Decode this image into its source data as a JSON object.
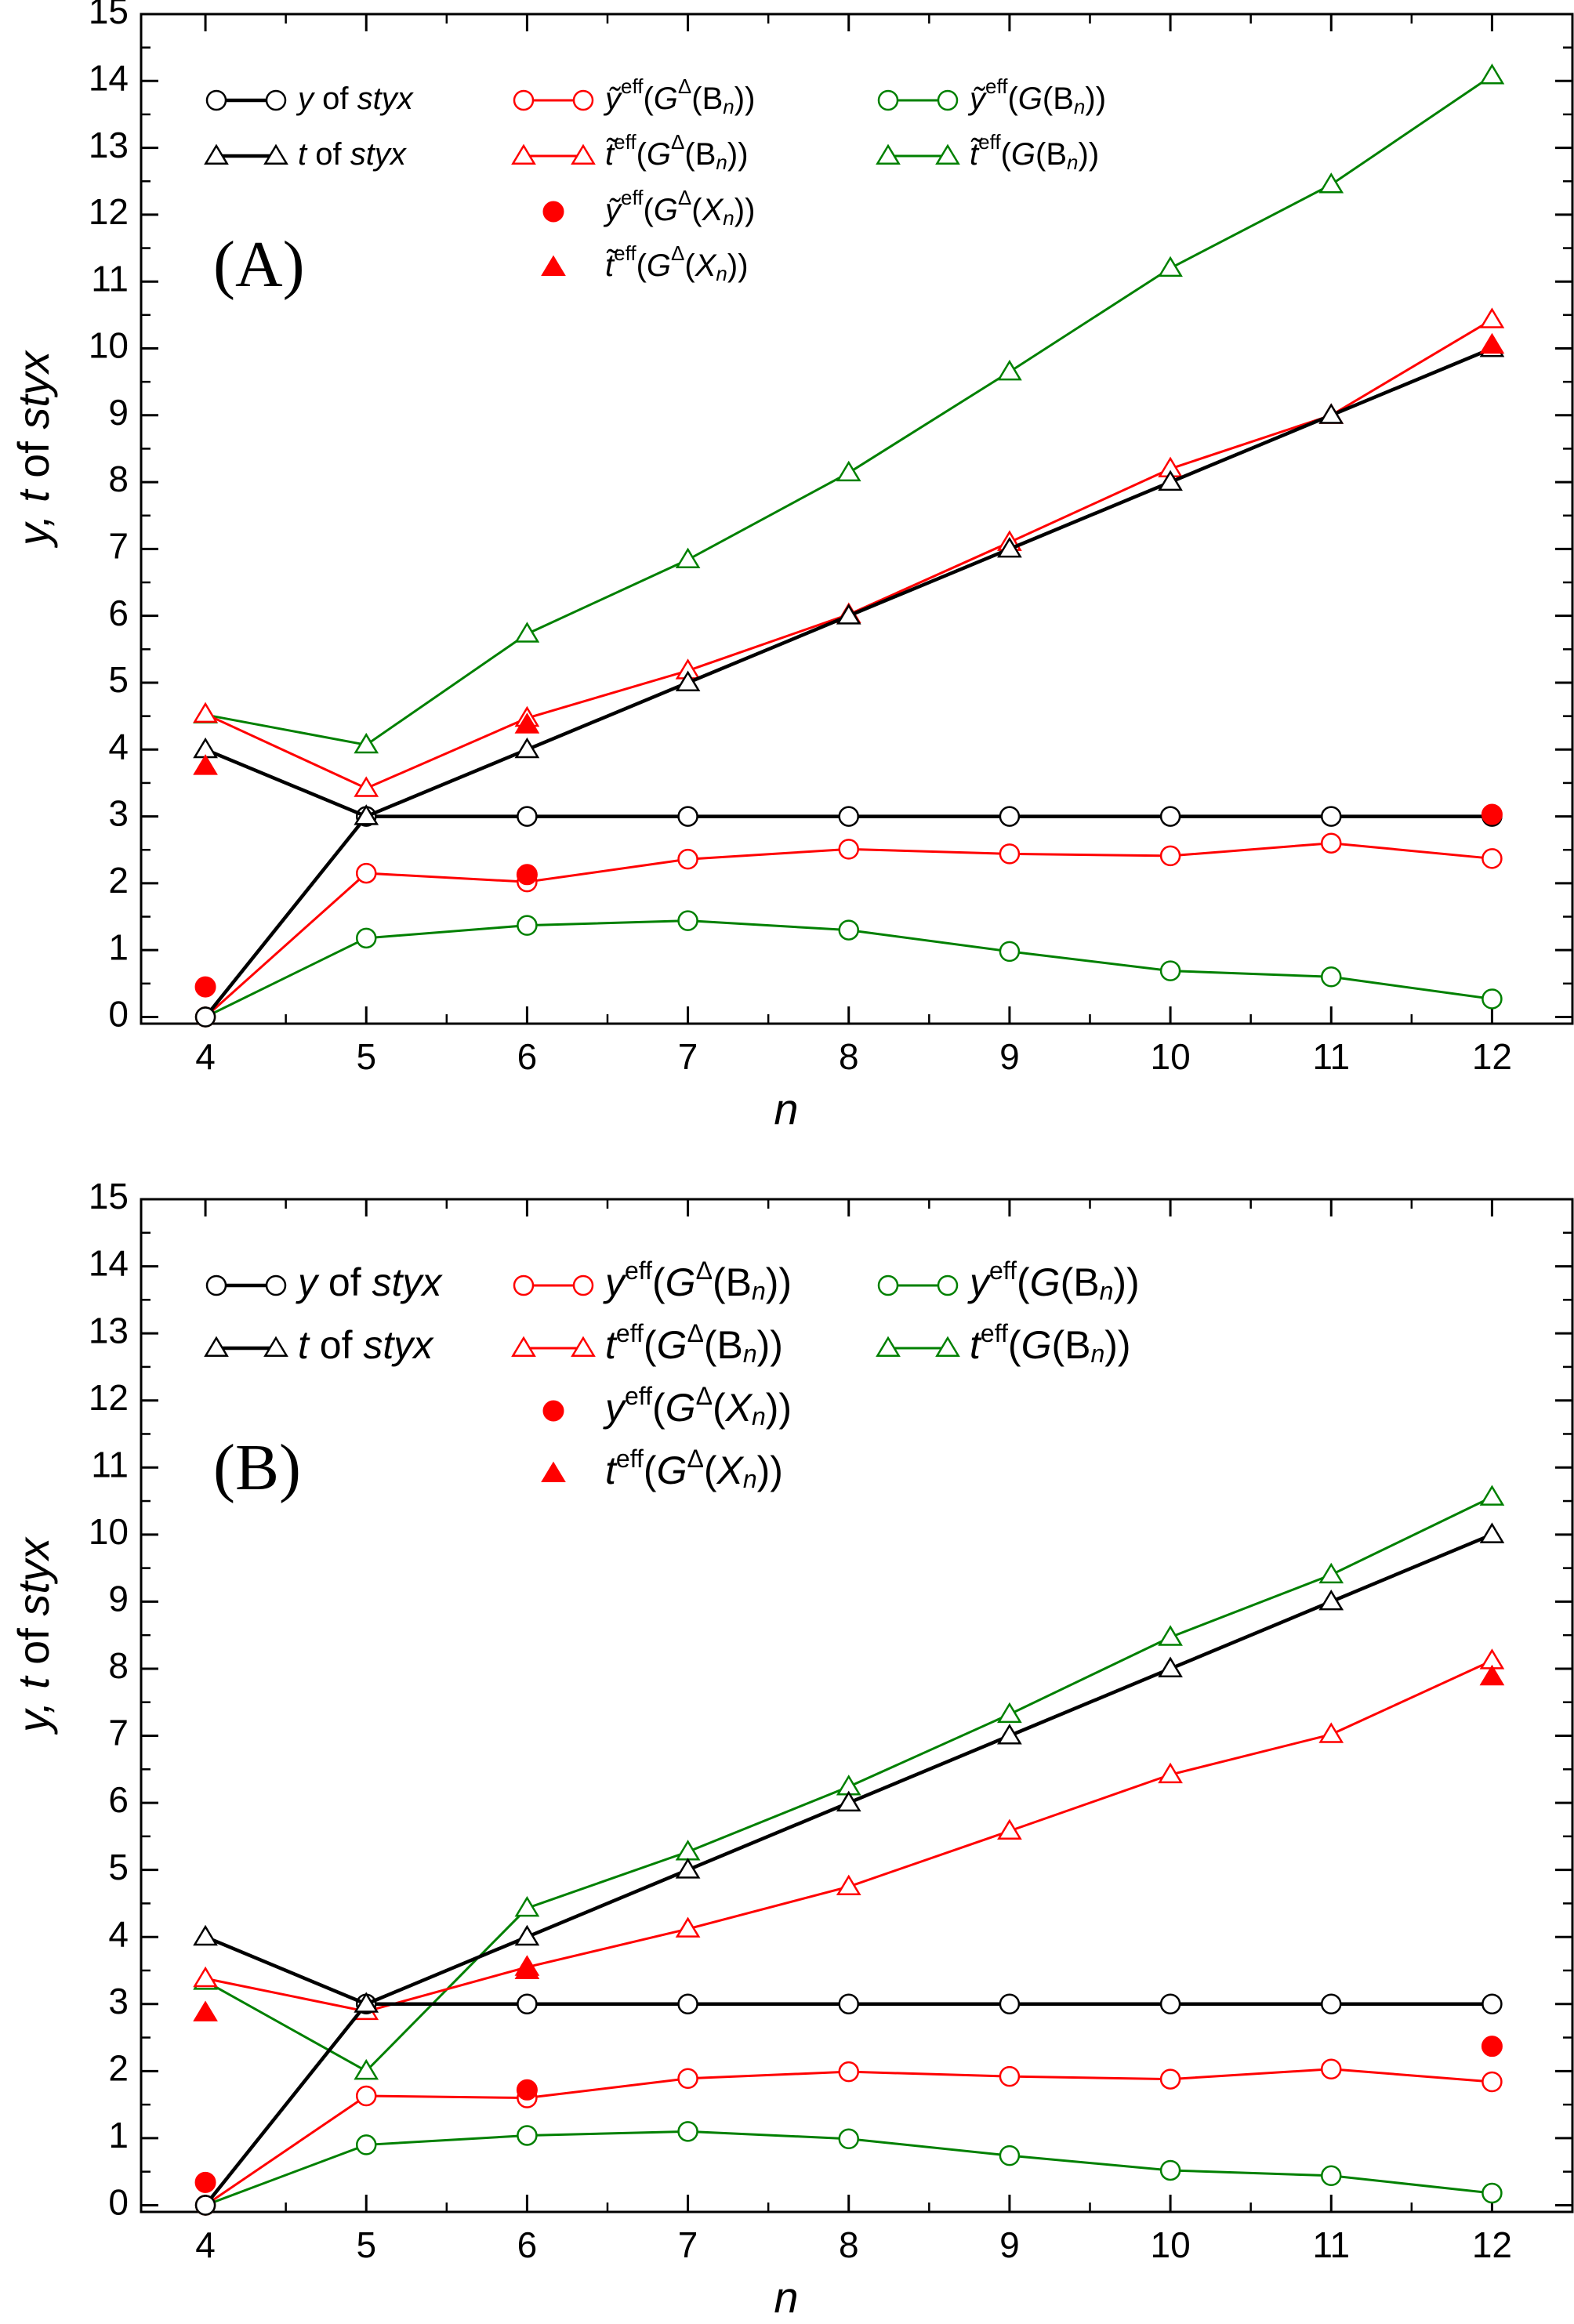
{
  "chart_data": [
    {
      "panel_label": "(A)",
      "type": "line",
      "xlabel": "n",
      "ylabel": "y, t of styx",
      "xlim": [
        3.6,
        12.5
      ],
      "ylim": [
        -0.1,
        15
      ],
      "xticks": [
        "4",
        "5",
        "6",
        "7",
        "8",
        "9",
        "10",
        "11",
        "12"
      ],
      "yticks": [
        "0",
        "1",
        "2",
        "3",
        "4",
        "5",
        "6",
        "7",
        "8",
        "9",
        "10",
        "11",
        "12",
        "13",
        "14",
        "15"
      ],
      "x": [
        4,
        5,
        6,
        7,
        8,
        9,
        10,
        11,
        12
      ],
      "legend_placement": "top-left",
      "series": [
        {
          "name": "y of styx",
          "color": "#000000",
          "marker": "circle-open",
          "line": true,
          "values": [
            0,
            3,
            3,
            3,
            3,
            3,
            3,
            3,
            3
          ]
        },
        {
          "name": "t of styx",
          "color": "#000000",
          "marker": "triangle-open",
          "line": true,
          "values": [
            4,
            3,
            4,
            5,
            6,
            7,
            8,
            9,
            10
          ]
        },
        {
          "name": "ỹeff(GΔ(Bn))",
          "color": "#ff0000",
          "marker": "circle-open",
          "line": true,
          "values": [
            0,
            2.15,
            2.02,
            2.36,
            2.51,
            2.44,
            2.41,
            2.6,
            2.37
          ]
        },
        {
          "name": "t̃eff(GΔ(Bn))",
          "color": "#ff0000",
          "marker": "triangle-open",
          "line": true,
          "values": [
            4.53,
            3.42,
            4.47,
            5.18,
            6.02,
            7.1,
            8.2,
            9.0,
            10.43
          ]
        },
        {
          "name": "ỹeff(GΔ(Xn))",
          "color": "#ff0000",
          "marker": "circle-filled",
          "line": false,
          "x": [
            4,
            6,
            12
          ],
          "values": [
            0.45,
            2.13,
            3.03
          ]
        },
        {
          "name": "t̃eff(GΔ(Xn))",
          "color": "#ff0000",
          "marker": "triangle-filled",
          "line": false,
          "x": [
            4,
            6,
            12
          ],
          "values": [
            3.75,
            4.37,
            10.05
          ]
        },
        {
          "name": "ỹeff(G(Bn))",
          "color": "#008000",
          "marker": "circle-open",
          "line": true,
          "values": [
            0,
            1.18,
            1.37,
            1.44,
            1.3,
            0.98,
            0.69,
            0.6,
            0.27
          ]
        },
        {
          "name": "t̃eff(G(Bn))",
          "color": "#008000",
          "marker": "triangle-open",
          "line": true,
          "values": [
            4.52,
            4.07,
            5.73,
            6.84,
            8.14,
            9.65,
            11.2,
            12.45,
            14.08
          ]
        }
      ],
      "legend": {
        "col1": [
          {
            "series": 0,
            "main": "y",
            "italic_main": true,
            "rest": " of ",
            "rest2": "styx",
            "italic_rest2": true
          },
          {
            "series": 1,
            "main": "t",
            "italic_main": true,
            "rest": " of ",
            "rest2": "styx",
            "italic_rest2": true
          }
        ],
        "col2": [
          {
            "series": 2,
            "main": "ỹ",
            "sup": "eff",
            "arg_open": "(",
            "G": "G",
            "delta": "Δ",
            "inner": "(B",
            "sub": "n",
            "close": "))"
          },
          {
            "series": 3,
            "main": "t̃",
            "sup": "eff",
            "arg_open": "(",
            "G": "G",
            "delta": "Δ",
            "inner": "(B",
            "sub": "n",
            "close": "))"
          },
          {
            "series": 4,
            "main": "ỹ",
            "sup": "eff",
            "arg_open": "(",
            "G": "G",
            "delta": "Δ",
            "inner": "(X",
            "sub": "n",
            "close": "))"
          },
          {
            "series": 5,
            "main": "t̃",
            "sup": "eff",
            "arg_open": "(",
            "G": "G",
            "delta": "Δ",
            "inner": "(X",
            "sub": "n",
            "close": "))"
          }
        ],
        "col3": [
          {
            "series": 6,
            "main": "ỹ",
            "sup": "eff",
            "arg_open": "(",
            "G": "G",
            "delta": "",
            "inner": "(B",
            "sub": "n",
            "close": "))"
          },
          {
            "series": 7,
            "main": "t̃",
            "sup": "eff",
            "arg_open": "(",
            "G": "G",
            "delta": "",
            "inner": "(B",
            "sub": "n",
            "close": "))"
          }
        ]
      }
    },
    {
      "panel_label": "(B)",
      "type": "line",
      "xlabel": "n",
      "ylabel": "y, t of styx",
      "xlim": [
        3.6,
        12.5
      ],
      "ylim": [
        -0.1,
        15
      ],
      "xticks": [
        "4",
        "5",
        "6",
        "7",
        "8",
        "9",
        "10",
        "11",
        "12"
      ],
      "yticks": [
        "0",
        "1",
        "2",
        "3",
        "4",
        "5",
        "6",
        "7",
        "8",
        "9",
        "10",
        "11",
        "12",
        "13",
        "14",
        "15"
      ],
      "x": [
        4,
        5,
        6,
        7,
        8,
        9,
        10,
        11,
        12
      ],
      "legend_placement": "top-left",
      "series": [
        {
          "name": "y of styx",
          "color": "#000000",
          "marker": "circle-open",
          "line": true,
          "values": [
            0,
            3,
            3,
            3,
            3,
            3,
            3,
            3,
            3
          ]
        },
        {
          "name": "t of styx",
          "color": "#000000",
          "marker": "triangle-open",
          "line": true,
          "values": [
            4,
            3,
            4,
            5,
            6,
            7,
            8,
            9,
            10
          ]
        },
        {
          "name": "yeff(GΔ(Bn))",
          "color": "#ff0000",
          "marker": "circle-open",
          "line": true,
          "values": [
            0,
            1.63,
            1.6,
            1.89,
            1.99,
            1.92,
            1.88,
            2.03,
            1.84
          ]
        },
        {
          "name": "teff(GΔ(Bn))",
          "color": "#ff0000",
          "marker": "triangle-open",
          "line": true,
          "values": [
            3.38,
            2.89,
            3.55,
            4.12,
            4.75,
            5.58,
            6.42,
            7.02,
            8.12
          ]
        },
        {
          "name": "yeff(GΔ(Xn))",
          "color": "#ff0000",
          "marker": "circle-filled",
          "line": false,
          "x": [
            4,
            6,
            12
          ],
          "values": [
            0.34,
            1.72,
            2.37
          ]
        },
        {
          "name": "teff(GΔ(Xn))",
          "color": "#ff0000",
          "marker": "triangle-filled",
          "line": false,
          "x": [
            4,
            6,
            12
          ],
          "values": [
            2.87,
            3.5,
            7.88
          ]
        },
        {
          "name": "yeff(G(Bn))",
          "color": "#008000",
          "marker": "circle-open",
          "line": true,
          "values": [
            0,
            0.9,
            1.04,
            1.1,
            0.99,
            0.74,
            0.52,
            0.44,
            0.18
          ]
        },
        {
          "name": "teff(G(Bn))",
          "color": "#008000",
          "marker": "triangle-open",
          "line": true,
          "values": [
            3.34,
            2.0,
            4.43,
            5.27,
            6.24,
            7.32,
            8.47,
            9.4,
            10.56
          ]
        }
      ],
      "legend": {
        "col1": [
          {
            "series": 0,
            "main": "y",
            "italic_main": true,
            "rest": " of ",
            "rest2": "styx",
            "italic_rest2": true
          },
          {
            "series": 1,
            "main": "t",
            "italic_main": true,
            "rest": " of ",
            "rest2": "styx",
            "italic_rest2": true
          }
        ],
        "col2": [
          {
            "series": 2,
            "main": "y",
            "sup": "eff",
            "arg_open": "(",
            "G": "G",
            "delta": "Δ",
            "inner": "(B",
            "sub": "n",
            "close": "))"
          },
          {
            "series": 3,
            "main": "t",
            "sup": "eff",
            "arg_open": "(",
            "G": "G",
            "delta": "Δ",
            "inner": "(B",
            "sub": "n",
            "close": "))"
          },
          {
            "series": 4,
            "main": "y",
            "sup": "eff",
            "arg_open": "(",
            "G": "G",
            "delta": "Δ",
            "inner": "(X",
            "sub": "n",
            "close": "))"
          },
          {
            "series": 5,
            "main": "t",
            "sup": "eff",
            "arg_open": "(",
            "G": "G",
            "delta": "Δ",
            "inner": "(X",
            "sub": "n",
            "close": "))"
          }
        ],
        "col3": [
          {
            "series": 6,
            "main": "y",
            "sup": "eff",
            "arg_open": "(",
            "G": "G",
            "delta": "",
            "inner": "(B",
            "sub": "n",
            "close": "))"
          },
          {
            "series": 7,
            "main": "t",
            "sup": "eff",
            "arg_open": "(",
            "G": "G",
            "delta": "",
            "inner": "(B",
            "sub": "n",
            "close": "))"
          }
        ]
      }
    }
  ]
}
